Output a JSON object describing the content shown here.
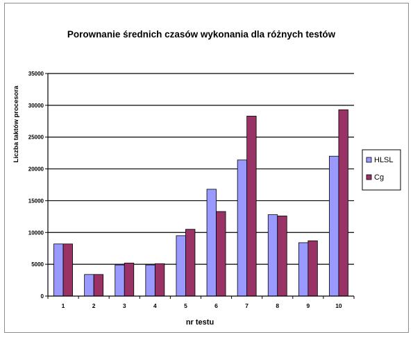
{
  "chart_data": {
    "type": "bar",
    "title": "Porownanie średnich czasów wykonania dla różnych testów",
    "xlabel": "nr testu",
    "ylabel": "Liczba taktów procesora",
    "categories": [
      "1",
      "2",
      "3",
      "4",
      "5",
      "6",
      "7",
      "8",
      "9",
      "10"
    ],
    "series": [
      {
        "name": "HLSL",
        "color": "#9999ff",
        "values": [
          8200,
          3400,
          4900,
          4900,
          9500,
          16800,
          21400,
          12800,
          8400,
          22000
        ]
      },
      {
        "name": "Cg",
        "color": "#993366",
        "values": [
          8200,
          3400,
          5200,
          5100,
          10500,
          13300,
          28300,
          12600,
          8700,
          29300
        ]
      }
    ],
    "ylim": [
      0,
      35000
    ],
    "yticks": [
      "0",
      "5000",
      "10000",
      "15000",
      "20000",
      "25000",
      "30000",
      "35000"
    ],
    "grid": true,
    "legend_position": "right"
  }
}
